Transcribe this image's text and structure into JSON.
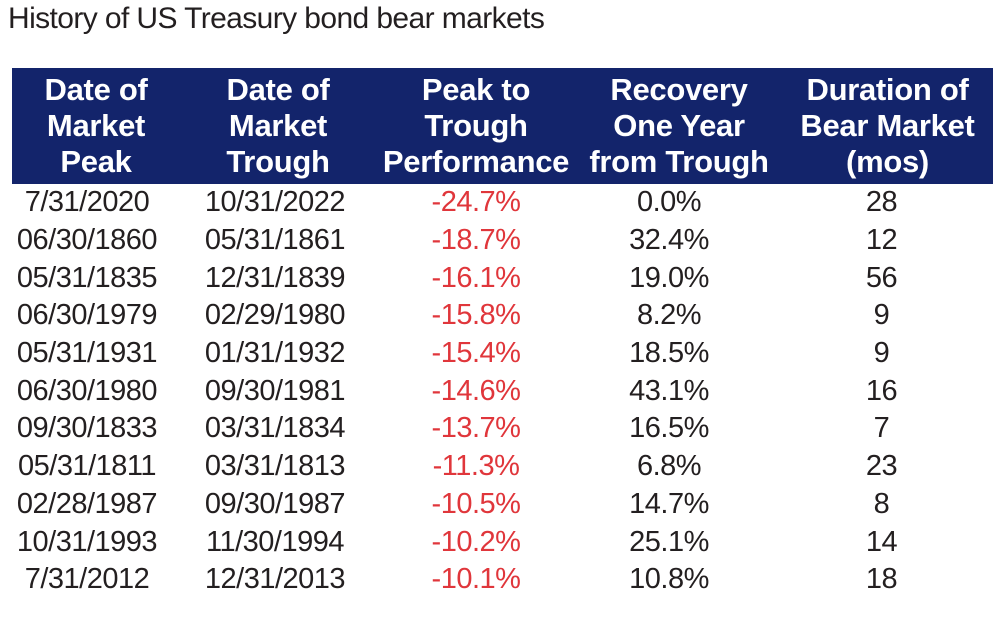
{
  "title": "History of US Treasury bond bear markets",
  "table": {
    "headers": [
      [
        "Date of",
        "Market",
        "Peak"
      ],
      [
        "Date of",
        "Market",
        "Trough"
      ],
      [
        "Peak to",
        "Trough",
        "Performance"
      ],
      [
        "Recovery",
        "One Year",
        "from Trough"
      ],
      [
        "Duration of",
        "Bear Market",
        "(mos)"
      ]
    ],
    "rows": [
      [
        "7/31/2020",
        "10/31/2022",
        "-24.7%",
        "0.0%",
        "28"
      ],
      [
        "06/30/1860",
        "05/31/1861",
        "-18.7%",
        "32.4%",
        "12"
      ],
      [
        "05/31/1835",
        "12/31/1839",
        "-16.1%",
        "19.0%",
        "56"
      ],
      [
        "06/30/1979",
        "02/29/1980",
        "-15.8%",
        "8.2%",
        "9"
      ],
      [
        "05/31/1931",
        "01/31/1932",
        "-15.4%",
        "18.5%",
        "9"
      ],
      [
        "06/30/1980",
        "09/30/1981",
        "-14.6%",
        "43.1%",
        "16"
      ],
      [
        "09/30/1833",
        "03/31/1834",
        "-13.7%",
        "16.5%",
        "7"
      ],
      [
        "05/31/1811",
        "03/31/1813",
        "-11.3%",
        "6.8%",
        "23"
      ],
      [
        "02/28/1987",
        "09/30/1987",
        "-10.5%",
        "14.7%",
        "8"
      ],
      [
        "10/31/1993",
        "11/30/1994",
        "-10.2%",
        "25.1%",
        "14"
      ],
      [
        "7/31/2012",
        "12/31/2013",
        "-10.1%",
        "10.8%",
        "18"
      ]
    ]
  },
  "colors": {
    "header_bg": "#13246b",
    "header_text": "#ffffff",
    "negative_text": "#e0363b",
    "body_text": "#231f20"
  }
}
